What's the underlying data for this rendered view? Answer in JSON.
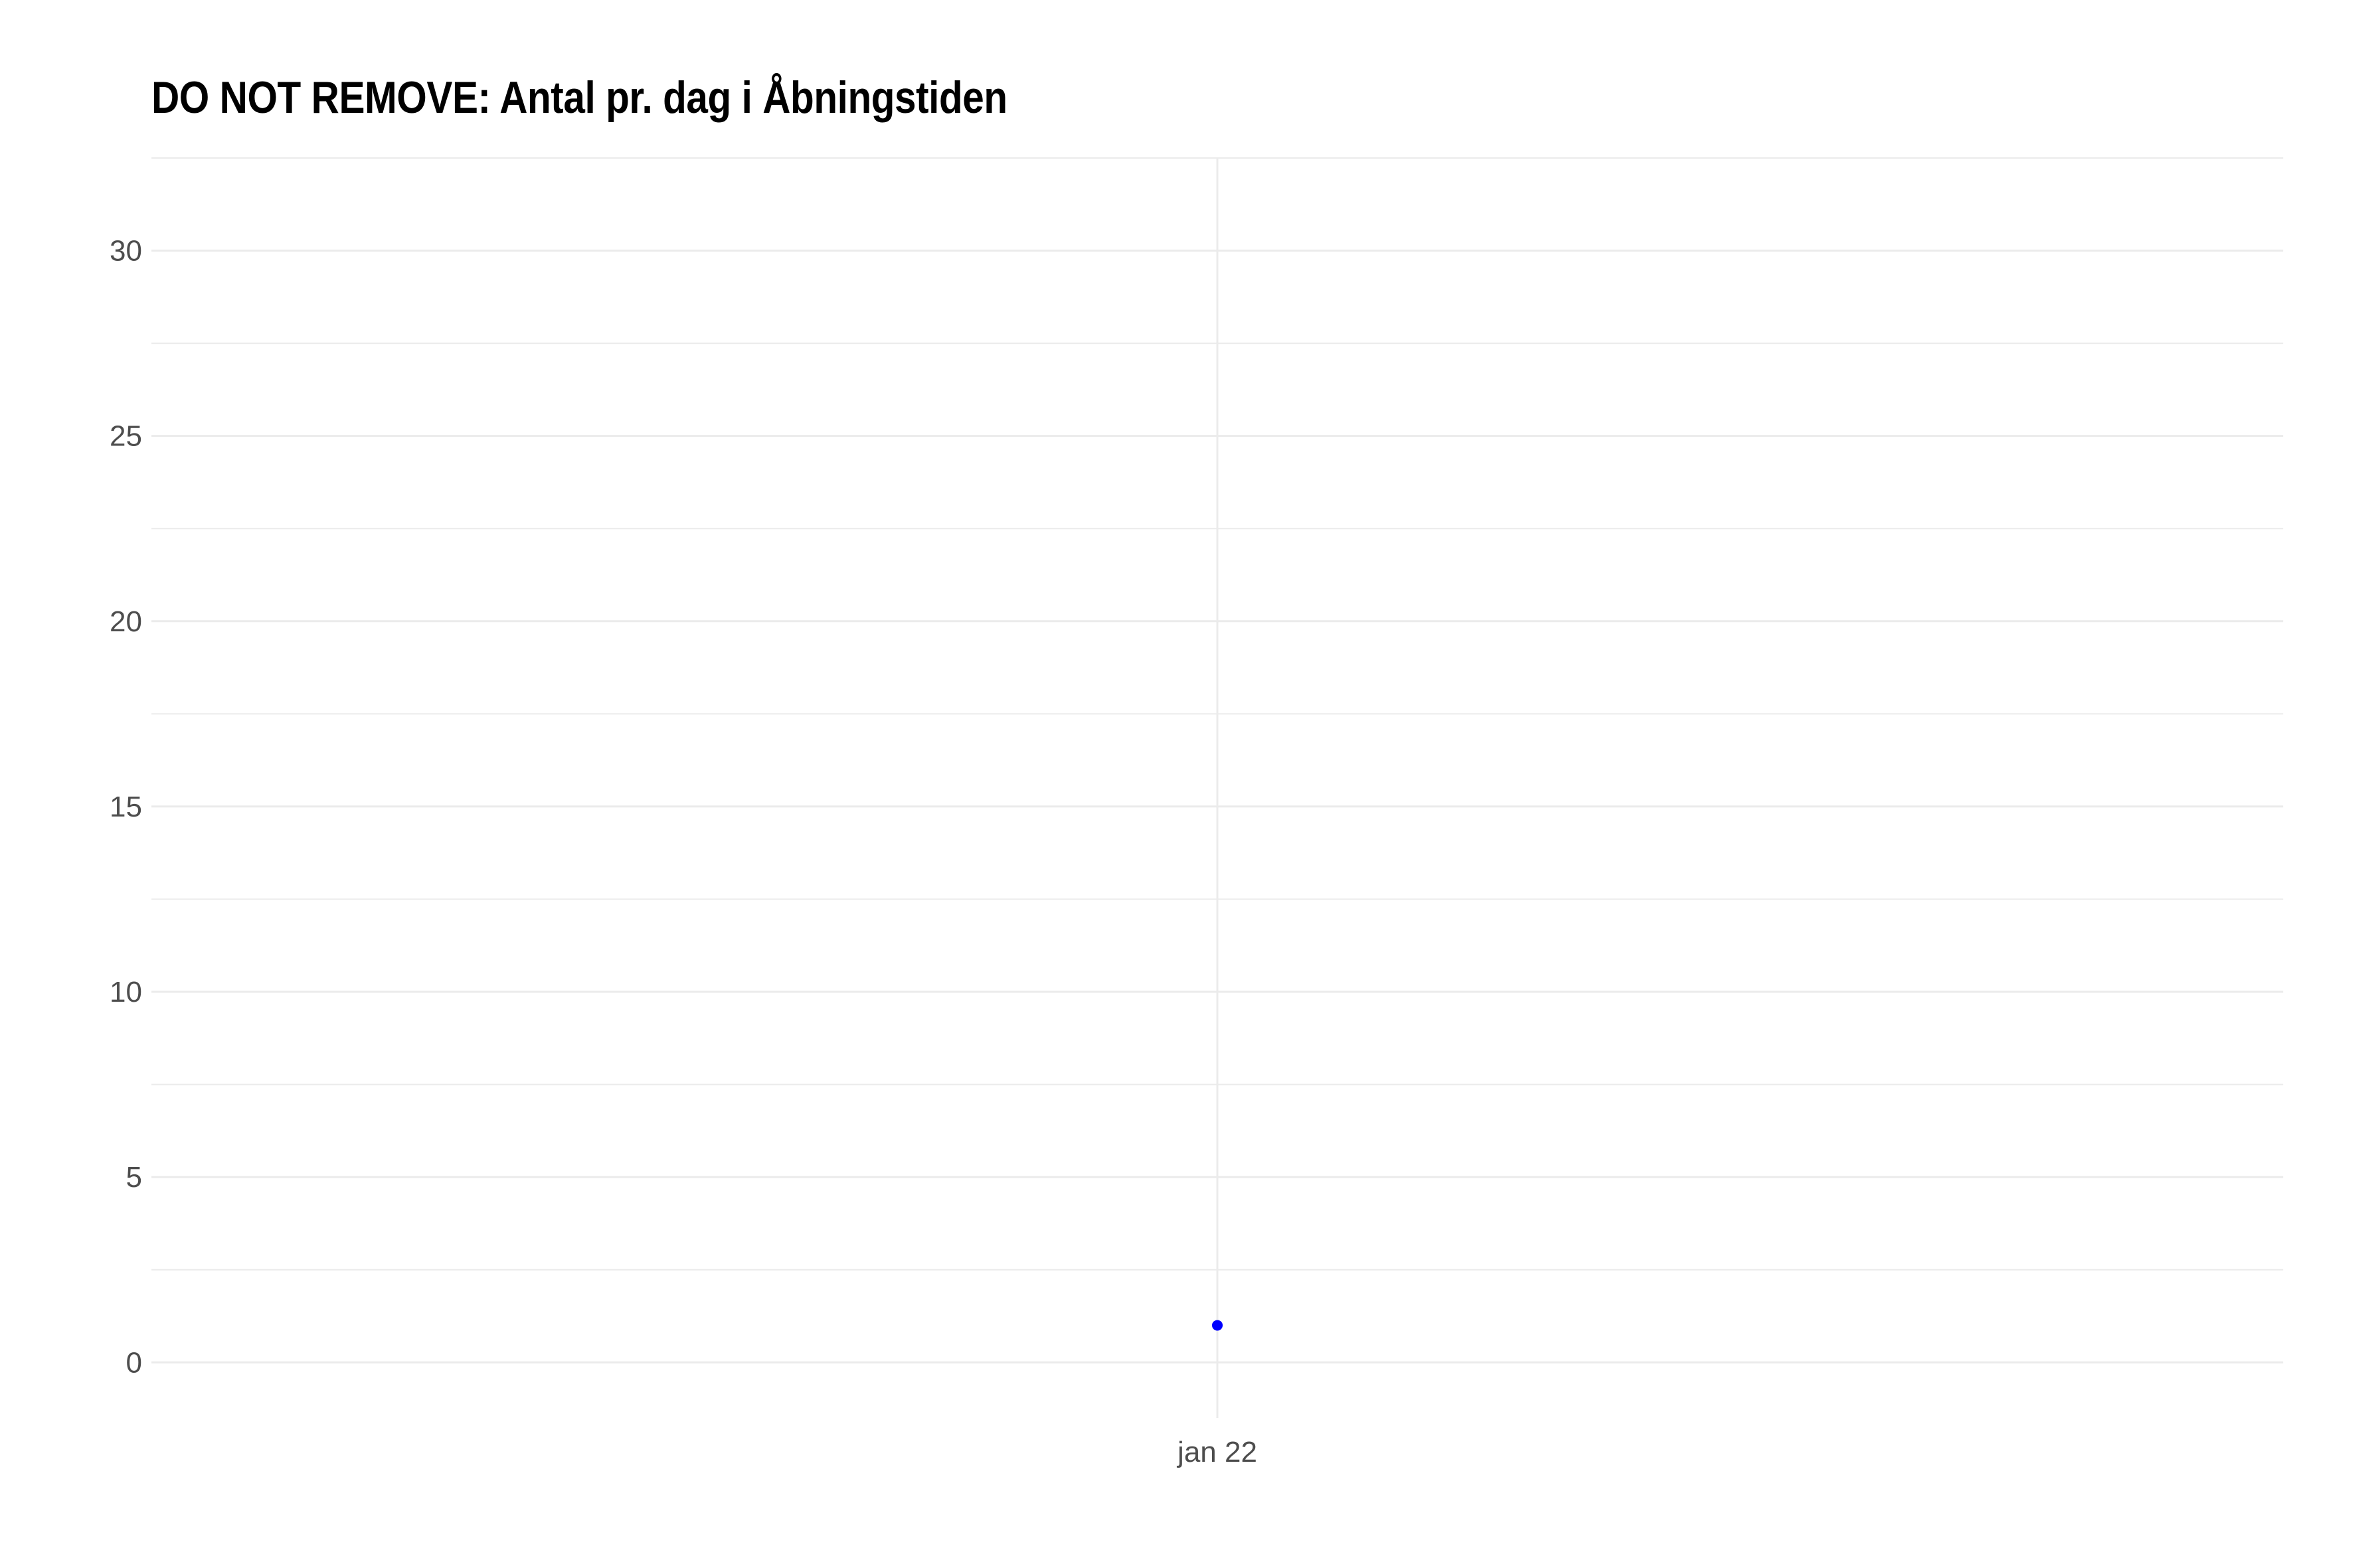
{
  "chart_data": {
    "type": "scatter",
    "title": "DO NOT REMOVE: Antal pr. dag i Åbningstiden",
    "xlabel": "",
    "ylabel": "",
    "x_tick_labels": [
      "jan 22"
    ],
    "y_ticks": [
      0,
      5,
      10,
      15,
      20,
      25,
      30
    ],
    "y_tick_labels": [
      "0",
      "5",
      "10",
      "15",
      "20",
      "25",
      "30"
    ],
    "ylim": [
      -1.5,
      32.5
    ],
    "grid": true,
    "legend": "none",
    "series": [
      {
        "x": [
          "jan 22"
        ],
        "values": [
          1
        ]
      }
    ],
    "colors": {
      "point": "#0000ff",
      "grid": "#ebebeb",
      "tick_text": "#4d4d4d",
      "title": "#000000"
    }
  }
}
